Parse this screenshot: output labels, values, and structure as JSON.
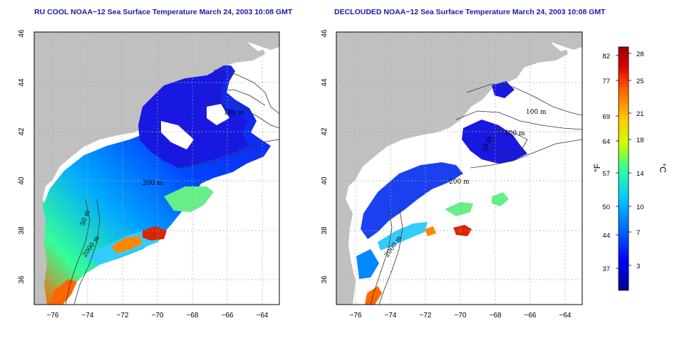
{
  "maps": [
    {
      "id": "left",
      "title": "RU COOL NOAA−12 Sea Surface Temperature March 24, 2003 10:08 GMT",
      "contour_labels": [
        "100 m",
        "200 m",
        "50 m",
        "2000 m"
      ]
    },
    {
      "id": "right",
      "title": "DECLOUDED NOAA−12 Sea Surface Temperature March 24, 2003 10:08 GMT",
      "contour_labels": [
        "100 m",
        "100 m",
        "200 m",
        "50 m",
        "2000 m"
      ]
    }
  ],
  "axes": {
    "lon_ticks": [
      "−76",
      "−74",
      "−72",
      "−70",
      "−68",
      "−66",
      "−64"
    ],
    "lat_ticks": [
      "36",
      "38",
      "40",
      "42",
      "44",
      "46"
    ],
    "lon_range": [
      -77,
      -63
    ],
    "lat_range": [
      35,
      46
    ]
  },
  "colorbar": {
    "f_label": "°F",
    "c_label": "°C",
    "f_ticks": [
      "82",
      "77",
      "69",
      "64",
      "57",
      "50",
      "44",
      "37"
    ],
    "c_ticks": [
      "28",
      "25",
      "21",
      "18",
      "14",
      "10",
      "7",
      "3"
    ],
    "colors": [
      "#00008b",
      "#0000ff",
      "#0066ff",
      "#00ccff",
      "#33ff99",
      "#ccff00",
      "#ffcc00",
      "#ff6600",
      "#dd0000",
      "#990000"
    ]
  },
  "land_color": "#c0c0c0"
}
